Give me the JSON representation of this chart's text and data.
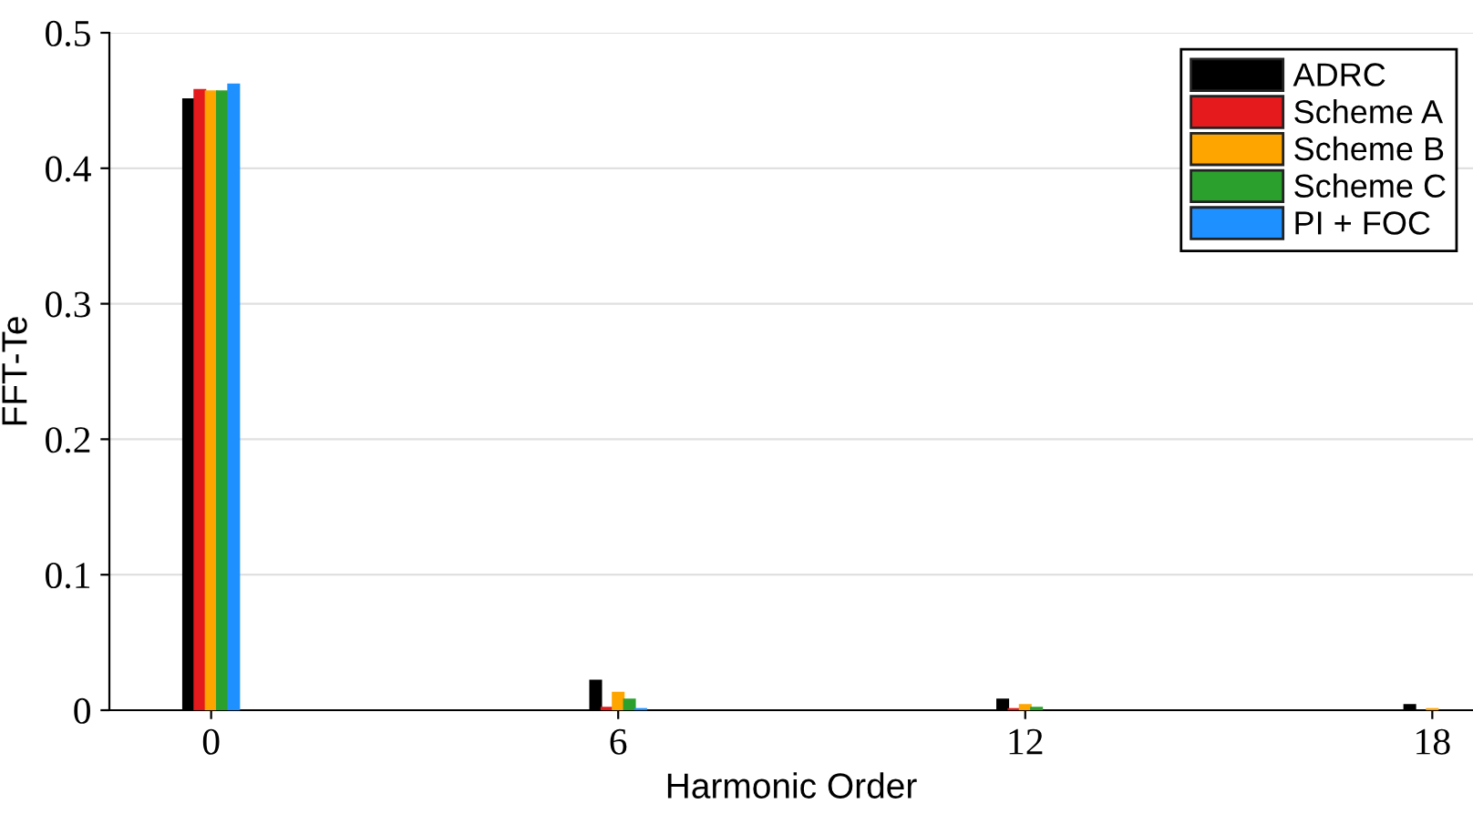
{
  "chart_data": {
    "type": "bar",
    "xlabel": "Harmonic Order",
    "ylabel": "FFT-Te",
    "x": [
      0,
      1,
      2,
      3,
      4,
      5,
      6,
      7,
      8,
      9,
      10,
      11,
      12,
      13,
      14,
      15,
      16,
      17,
      18
    ],
    "series": [
      {
        "name": "ADRC",
        "color": "#000000",
        "values": [
          0.451,
          null,
          null,
          null,
          null,
          null,
          0.022,
          null,
          null,
          null,
          null,
          null,
          0.008,
          null,
          null,
          null,
          null,
          null,
          0.004
        ]
      },
      {
        "name": "Scheme A",
        "color": "#e41a1c",
        "values": [
          0.458,
          null,
          null,
          null,
          null,
          null,
          0.002,
          null,
          null,
          null,
          null,
          null,
          0.001,
          null,
          null,
          null,
          null,
          null,
          null
        ]
      },
      {
        "name": "Scheme B",
        "color": "#ffa500",
        "values": [
          0.457,
          null,
          null,
          null,
          null,
          null,
          0.013,
          null,
          null,
          null,
          null,
          null,
          0.004,
          null,
          null,
          null,
          null,
          null,
          0.001
        ]
      },
      {
        "name": "Scheme C",
        "color": "#2ca02c",
        "values": [
          0.457,
          null,
          null,
          null,
          null,
          null,
          0.008,
          null,
          null,
          null,
          null,
          null,
          0.002,
          null,
          null,
          null,
          null,
          null,
          null
        ]
      },
      {
        "name": "PI + FOC",
        "color": "#1e90ff",
        "values": [
          0.462,
          null,
          null,
          null,
          null,
          null,
          0.001,
          null,
          null,
          null,
          null,
          null,
          null,
          null,
          null,
          null,
          null,
          null,
          null
        ]
      }
    ],
    "xlim": [
      -1.5,
      18.6
    ],
    "xticks": [
      0,
      6,
      12,
      18
    ],
    "ylim": [
      0,
      0.5
    ],
    "yticks": [
      0,
      0.1,
      0.2,
      0.3,
      0.4,
      0.5
    ],
    "grid": "y",
    "legend": "top right"
  }
}
